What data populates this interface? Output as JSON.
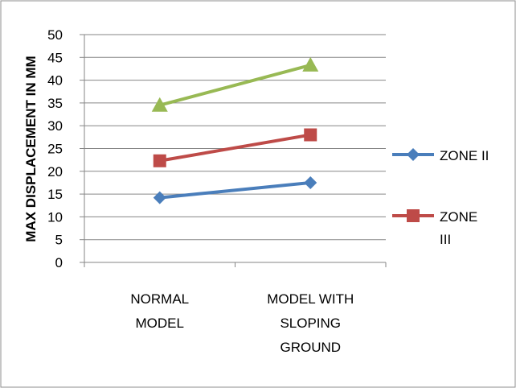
{
  "chart_data": {
    "type": "line",
    "title": "",
    "ylabel": "MAX DISPLACEMENT IN MM",
    "xlabel": "",
    "categories": [
      [
        "NORMAL",
        "MODEL"
      ],
      [
        "MODEL WITH",
        "SLOPING",
        "GROUND"
      ]
    ],
    "ylim": [
      0,
      50
    ],
    "yticks": [
      "0",
      "5",
      "10",
      "15",
      "20",
      "25",
      "30",
      "35",
      "40",
      "45",
      "50"
    ],
    "grid": true,
    "legend_position": "right",
    "series": [
      {
        "name": [
          "ZONE II"
        ],
        "values": [
          14.2,
          17.5
        ],
        "color": "#4a7ebb",
        "marker": "diamond"
      },
      {
        "name": [
          "ZONE",
          "III"
        ],
        "values": [
          22.3,
          28.0
        ],
        "color": "#be4b48",
        "marker": "square"
      },
      {
        "values": [
          34.5,
          43.3
        ],
        "color": "#98b954",
        "marker": "triangle"
      }
    ]
  }
}
